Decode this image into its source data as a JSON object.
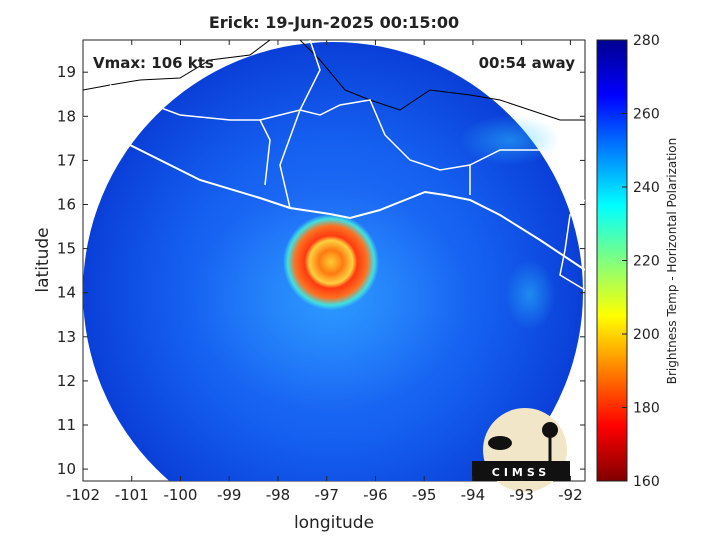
{
  "map": {
    "title": "Erick: 19-Jun-2025 00:15:00",
    "vmax": "Vmax: 106 kts",
    "time_away": "00:54 away",
    "xlabel": "longitude",
    "ylabel": "latitude",
    "xlim": [
      -102,
      -91.7
    ],
    "ylim": [
      9.73,
      19.73
    ],
    "xticks": [
      -102,
      -101,
      -100,
      -99,
      -98,
      -97,
      -96,
      -95,
      -94,
      -93,
      -92
    ],
    "yticks": [
      10,
      11,
      12,
      13,
      14,
      15,
      16,
      17,
      18,
      19
    ],
    "colorbar": {
      "label": "Brightness Temp - Horizontal Polarization",
      "lim": [
        160,
        280
      ],
      "ticks": [
        160,
        180,
        200,
        220,
        240,
        260,
        280
      ]
    },
    "logo": "CIMSS"
  }
}
